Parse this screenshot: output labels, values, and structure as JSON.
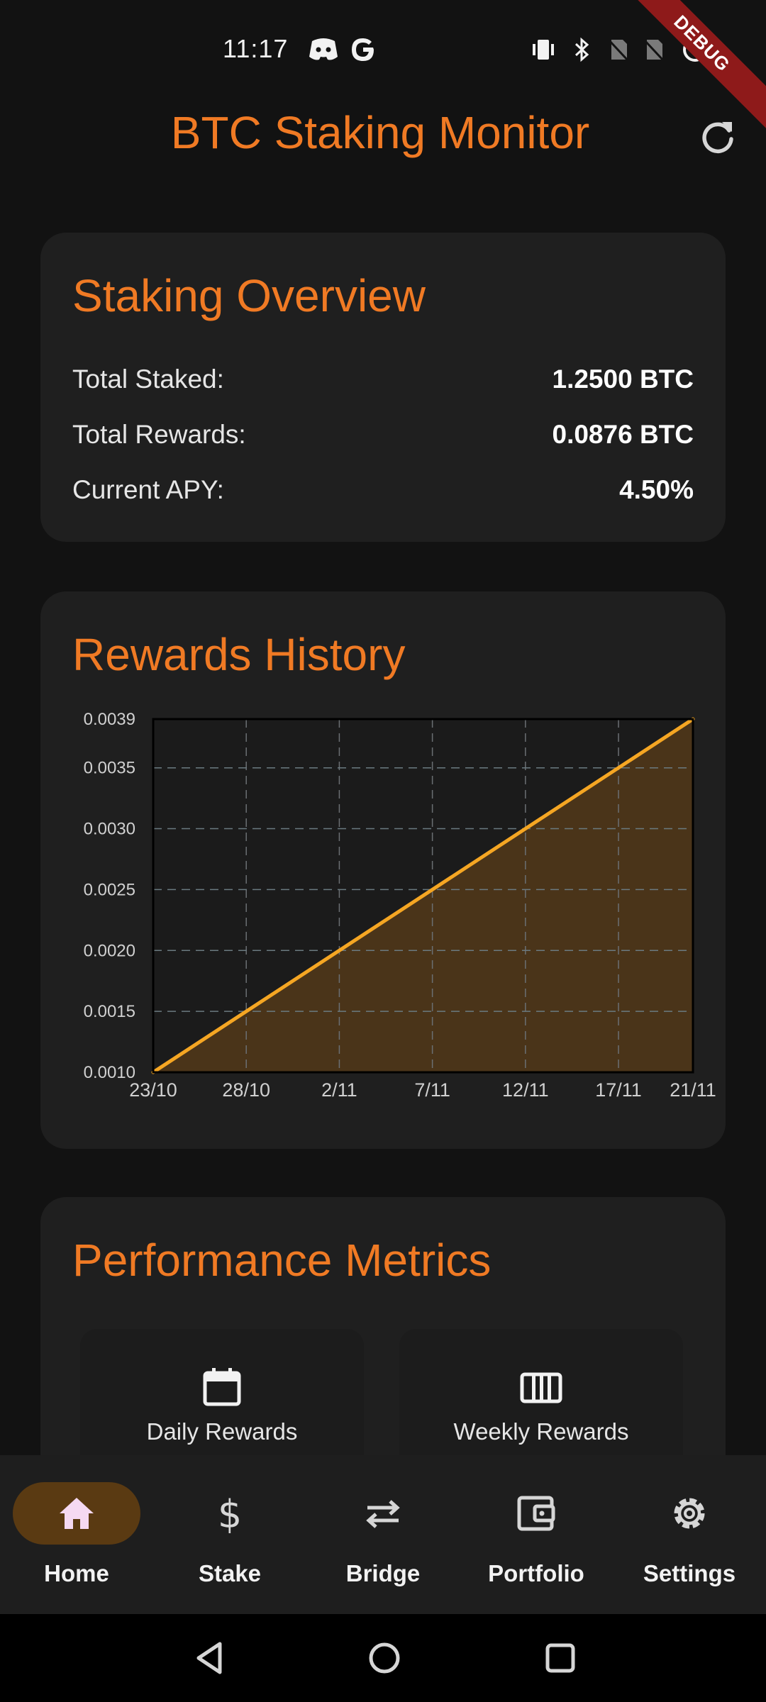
{
  "status_bar": {
    "time": "11:17",
    "left_icons": [
      "discord-icon",
      "google-icon"
    ],
    "right_icons": [
      "vibrate-icon",
      "bluetooth-icon",
      "no-sim-icon",
      "no-sim-icon",
      "loading-icon"
    ],
    "debug_label": "DEBUG"
  },
  "app_bar": {
    "title": "BTC Staking Monitor",
    "refresh_icon": "refresh-icon",
    "accent": "#f07a24"
  },
  "overview": {
    "title": "Staking Overview",
    "rows": [
      {
        "label": "Total Staked:",
        "value": "1.2500 BTC"
      },
      {
        "label": "Total Rewards:",
        "value": "0.0876 BTC"
      },
      {
        "label": "Current APY:",
        "value": "4.50%"
      }
    ]
  },
  "rewards_history": {
    "title": "Rewards History"
  },
  "chart_data": {
    "type": "area",
    "title": "Rewards History",
    "x_tick_labels": [
      "23/10",
      "28/10",
      "2/11",
      "7/11",
      "12/11",
      "17/11",
      "21/11"
    ],
    "x_tick_values": [
      0,
      5,
      10,
      15,
      20,
      25,
      29
    ],
    "y_tick_labels": [
      "0.0010",
      "0.0015",
      "0.0020",
      "0.0025",
      "0.0030",
      "0.0035",
      "0.0039"
    ],
    "y_tick_values": [
      0.001,
      0.0015,
      0.002,
      0.0025,
      0.003,
      0.0035,
      0.0039
    ],
    "xlim": [
      0,
      29
    ],
    "ylim": [
      0.001,
      0.0039
    ],
    "series": [
      {
        "x": [
          0,
          29
        ],
        "y": [
          0.001,
          0.0039
        ]
      }
    ],
    "grid": true,
    "line_color": "#f5a623",
    "fill_color": "#4a3419"
  },
  "performance": {
    "title": "Performance Metrics",
    "tiles": [
      {
        "label": "Daily Rewards",
        "icon": "calendar-icon"
      },
      {
        "label": "Weekly Rewards",
        "icon": "view-week-icon"
      }
    ]
  },
  "bottom_nav": {
    "active_index": 0,
    "items": [
      {
        "label": "Home",
        "icon": "home-icon"
      },
      {
        "label": "Stake",
        "icon": "dollar-icon"
      },
      {
        "label": "Bridge",
        "icon": "swap-icon"
      },
      {
        "label": "Portfolio",
        "icon": "wallet-icon"
      },
      {
        "label": "Settings",
        "icon": "gear-icon"
      }
    ]
  },
  "system_nav": {
    "buttons": [
      "back-icon",
      "home-circle-icon",
      "recents-icon"
    ]
  }
}
